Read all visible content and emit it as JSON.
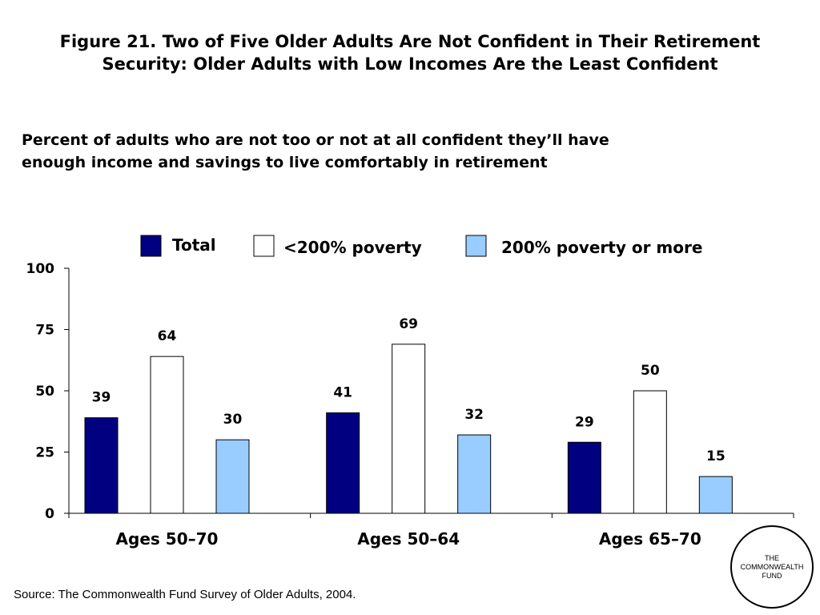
{
  "title_line1": "Figure 21. Two of Five Older Adults Are Not Confident in Their Retirement",
  "title_line2": "Security: Older Adults with Low Incomes Are the Least Confident",
  "subtitle_line1": "Percent of adults who are not too or not at all confident they’ll have",
  "subtitle_line2": "enough income and savings to live comfortably in retirement",
  "source": "Source: The Commonwealth Fund Survey of Older Adults, 2004.",
  "logo": {
    "line1": "THE",
    "line2": "COMMONWEALTH",
    "line3": "FUND"
  },
  "chart_data": {
    "type": "bar",
    "categories": [
      "Ages 50–70",
      "Ages 50–64",
      "Ages 65–70"
    ],
    "series": [
      {
        "name": "Total",
        "values": [
          39,
          41,
          29
        ],
        "color": "#000080"
      },
      {
        "name": "<200% poverty",
        "values": [
          64,
          69,
          50
        ],
        "color": "#ffffff"
      },
      {
        "name": "200% poverty or more",
        "values": [
          30,
          32,
          15
        ],
        "color": "#99ccff"
      }
    ],
    "ylim": [
      0,
      100
    ],
    "yticks": [
      0,
      25,
      50,
      75,
      100
    ],
    "grid": false,
    "legend": "top",
    "data_labels": true
  }
}
